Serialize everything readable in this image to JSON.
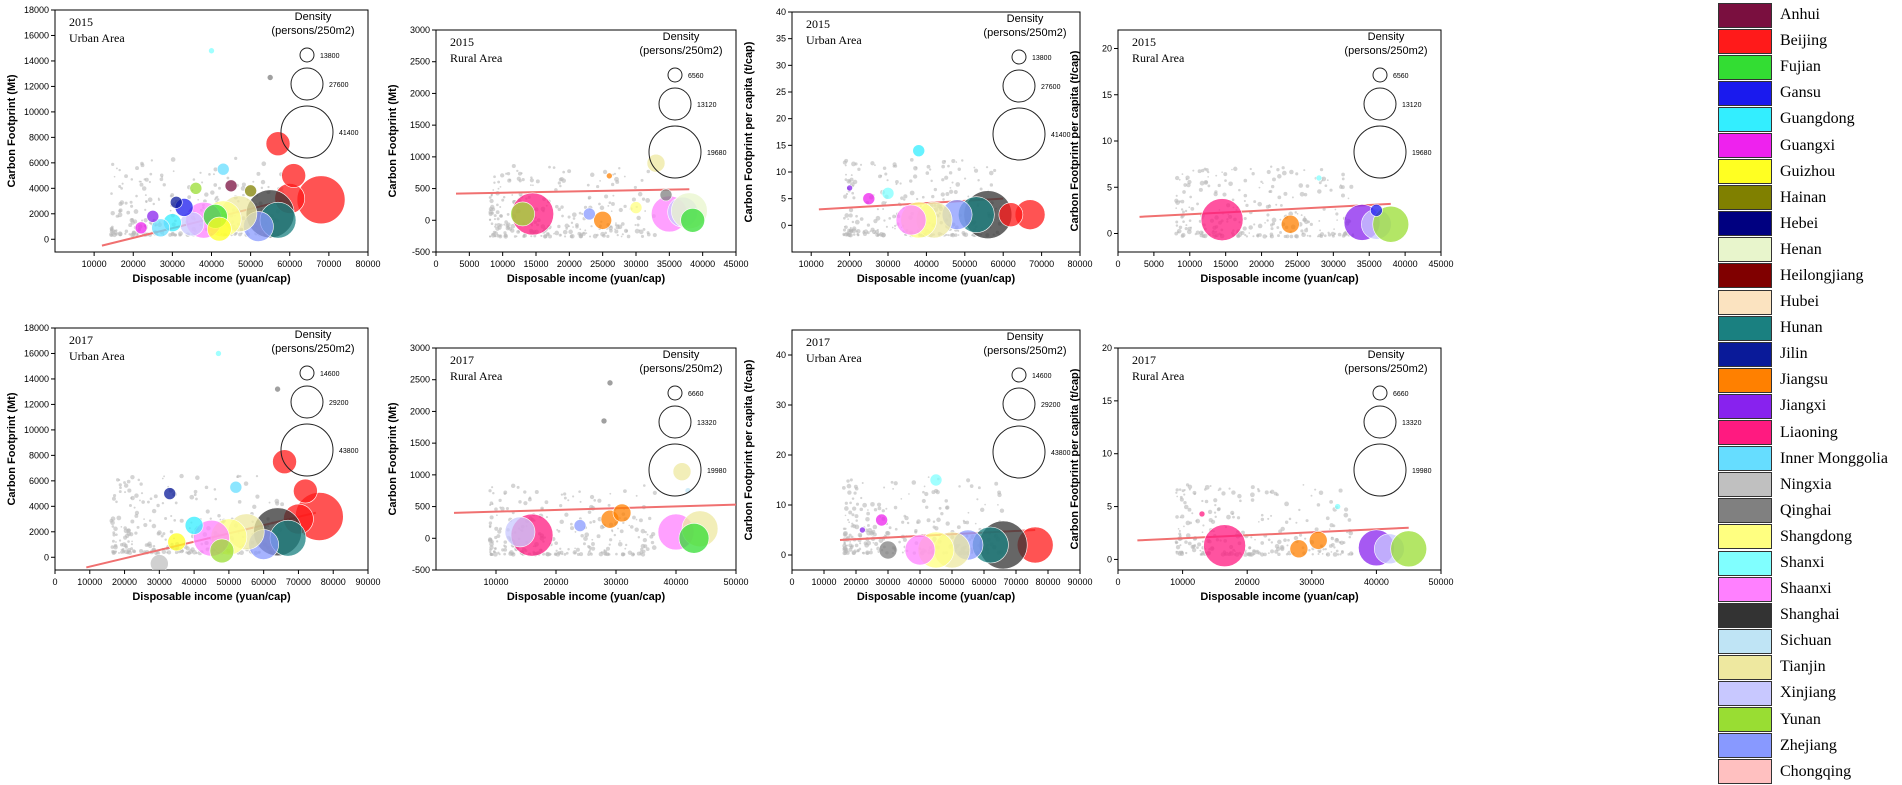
{
  "provinces": [
    {
      "name": "Anhui",
      "color": "#7a0f3f"
    },
    {
      "name": "Beijing",
      "color": "#ff1a1a"
    },
    {
      "name": "Fujian",
      "color": "#33dd33"
    },
    {
      "name": "Gansu",
      "color": "#1a1aee"
    },
    {
      "name": "Guangdong",
      "color": "#33eeff"
    },
    {
      "name": "Guangxi",
      "color": "#ee22ee"
    },
    {
      "name": "Guizhou",
      "color": "#ffff22"
    },
    {
      "name": "Hainan",
      "color": "#808000"
    },
    {
      "name": "Hebei",
      "color": "#000080"
    },
    {
      "name": "Henan",
      "color": "#e8f5cc"
    },
    {
      "name": "Heilongjiang",
      "color": "#800000"
    },
    {
      "name": "Hubei",
      "color": "#fbe3c0"
    },
    {
      "name": "Hunan",
      "color": "#1a8080"
    },
    {
      "name": "Jilin",
      "color": "#0a1a99"
    },
    {
      "name": "Jiangsu",
      "color": "#ff8000"
    },
    {
      "name": "Jiangxi",
      "color": "#8822ee"
    },
    {
      "name": "Liaoning",
      "color": "#ff1a80"
    },
    {
      "name": "Inner Monggolia",
      "color": "#66ddff"
    },
    {
      "name": "Ningxia",
      "color": "#c0c0c0"
    },
    {
      "name": "Qinghai",
      "color": "#808080"
    },
    {
      "name": "Shangdong",
      "color": "#ffff80"
    },
    {
      "name": "Shanxi",
      "color": "#80ffff"
    },
    {
      "name": "Shaanxi",
      "color": "#ff80ff"
    },
    {
      "name": "Shanghai",
      "color": "#333333"
    },
    {
      "name": "Sichuan",
      "color": "#bfe4f5"
    },
    {
      "name": "Tianjin",
      "color": "#eee8a0"
    },
    {
      "name": "Xinjiang",
      "color": "#c8c8ff"
    },
    {
      "name": "Yunan",
      "color": "#99dd33"
    },
    {
      "name": "Zhejiang",
      "color": "#8899ff"
    },
    {
      "name": "Chongqing",
      "color": "#ffc0c0"
    }
  ],
  "chart_data": [
    {
      "type": "scatter",
      "year": "2015",
      "area": "Urban Area",
      "xlabel": "Disposable income (yuan/cap)",
      "ylabel": "Carbon Footprint (Mt)",
      "xlim": [
        0,
        80000
      ],
      "ylim": [
        -1000,
        18000
      ],
      "xticks": [
        10000,
        20000,
        30000,
        40000,
        50000,
        60000,
        70000,
        80000
      ],
      "yticks": [
        0,
        2000,
        4000,
        6000,
        8000,
        10000,
        12000,
        14000,
        16000,
        18000
      ],
      "density_title": "Density",
      "density_unit": "(persons/250m2)",
      "density_sizes": [
        "13800",
        "27600",
        "41400"
      ],
      "trend": [
        [
          12000,
          -500
        ],
        [
          58000,
          3000
        ]
      ],
      "points": [
        {
          "x": 68000,
          "y": 3100,
          "p": 1,
          "s": 8
        },
        {
          "x": 60000,
          "y": 3200,
          "p": 1,
          "s": 5
        },
        {
          "x": 57000,
          "y": 7500,
          "p": 1,
          "s": 4
        },
        {
          "x": 61000,
          "y": 5000,
          "p": 1,
          "s": 4
        },
        {
          "x": 55000,
          "y": 2000,
          "p": 23,
          "s": 8
        },
        {
          "x": 57000,
          "y": 1500,
          "p": 12,
          "s": 6
        },
        {
          "x": 52000,
          "y": 1000,
          "p": 28,
          "s": 5
        },
        {
          "x": 47000,
          "y": 2000,
          "p": 25,
          "s": 6
        },
        {
          "x": 43000,
          "y": 1600,
          "p": 20,
          "s": 6
        },
        {
          "x": 38000,
          "y": 1500,
          "p": 22,
          "s": 6
        },
        {
          "x": 41000,
          "y": 1800,
          "p": 2,
          "s": 4
        },
        {
          "x": 42000,
          "y": 800,
          "p": 6,
          "s": 4
        },
        {
          "x": 35000,
          "y": 1200,
          "p": 26,
          "s": 4
        },
        {
          "x": 33000,
          "y": 2500,
          "p": 3,
          "s": 3
        },
        {
          "x": 30000,
          "y": 1300,
          "p": 4,
          "s": 3
        },
        {
          "x": 27000,
          "y": 900,
          "p": 17,
          "s": 3
        },
        {
          "x": 25000,
          "y": 1800,
          "p": 15,
          "s": 2
        },
        {
          "x": 22000,
          "y": 900,
          "p": 5,
          "s": 2
        },
        {
          "x": 40000,
          "y": 14800,
          "p": 21,
          "s": 1
        },
        {
          "x": 55000,
          "y": 12700,
          "p": 19,
          "s": 1
        },
        {
          "x": 43000,
          "y": 5500,
          "p": 17,
          "s": 2
        },
        {
          "x": 45000,
          "y": 4200,
          "p": 0,
          "s": 2
        },
        {
          "x": 50000,
          "y": 3800,
          "p": 7,
          "s": 2
        },
        {
          "x": 36000,
          "y": 4000,
          "p": 27,
          "s": 2
        },
        {
          "x": 31000,
          "y": 2900,
          "p": 13,
          "s": 2
        }
      ]
    },
    {
      "type": "scatter",
      "year": "2015",
      "area": "Rural Area",
      "xlabel": "Disposable income (yuan/cap)",
      "ylabel": "Carbon Footprint (Mt)",
      "xlim": [
        0,
        45000
      ],
      "ylim": [
        -500,
        3000
      ],
      "xticks": [
        0,
        5000,
        10000,
        15000,
        20000,
        25000,
        30000,
        35000,
        40000,
        45000
      ],
      "yticks": [
        -500,
        0,
        500,
        1000,
        1500,
        2000,
        2500,
        3000
      ],
      "density_title": "Density",
      "density_unit": "(persons/250m2)",
      "density_sizes": [
        "6560",
        "13120",
        "19680"
      ],
      "trend": [
        [
          3000,
          420
        ],
        [
          38000,
          490
        ]
      ],
      "points": [
        {
          "x": 14500,
          "y": 100,
          "p": 16,
          "s": 7
        },
        {
          "x": 13000,
          "y": 100,
          "p": 27,
          "s": 4
        },
        {
          "x": 35000,
          "y": 100,
          "p": 22,
          "s": 6
        },
        {
          "x": 37000,
          "y": 130,
          "p": 26,
          "s": 5
        },
        {
          "x": 38000,
          "y": 150,
          "p": 9,
          "s": 6
        },
        {
          "x": 38500,
          "y": 0,
          "p": 2,
          "s": 4
        },
        {
          "x": 25000,
          "y": 0,
          "p": 14,
          "s": 3
        },
        {
          "x": 26000,
          "y": 700,
          "p": 14,
          "s": 1
        },
        {
          "x": 33000,
          "y": 900,
          "p": 25,
          "s": 3
        },
        {
          "x": 34500,
          "y": 400,
          "p": 19,
          "s": 2
        },
        {
          "x": 23000,
          "y": 100,
          "p": 28,
          "s": 2
        },
        {
          "x": 30000,
          "y": 200,
          "p": 20,
          "s": 2
        }
      ]
    },
    {
      "type": "scatter",
      "year": "2015",
      "area": "Urban Area",
      "xlabel": "Disposable income (yuan/cap)",
      "ylabel": "Carbon Footprint per capita (t/cap)",
      "xlim": [
        5000,
        80000
      ],
      "ylim": [
        -5,
        40
      ],
      "xticks": [
        10000,
        20000,
        30000,
        40000,
        50000,
        60000,
        70000,
        80000
      ],
      "yticks": [
        0,
        5,
        10,
        15,
        20,
        25,
        30,
        35,
        40
      ],
      "density_title": "Density",
      "density_unit": "(persons/250m2)",
      "density_sizes": [
        "13800",
        "27600",
        "41400"
      ],
      "trend": [
        [
          12000,
          3
        ],
        [
          60000,
          5
        ]
      ],
      "points": [
        {
          "x": 67000,
          "y": 2,
          "p": 1,
          "s": 5
        },
        {
          "x": 56000,
          "y": 2,
          "p": 23,
          "s": 8
        },
        {
          "x": 53000,
          "y": 2,
          "p": 12,
          "s": 6
        },
        {
          "x": 48000,
          "y": 2,
          "p": 28,
          "s": 5
        },
        {
          "x": 42000,
          "y": 1,
          "p": 25,
          "s": 6
        },
        {
          "x": 38000,
          "y": 1,
          "p": 20,
          "s": 6
        },
        {
          "x": 36000,
          "y": 1,
          "p": 22,
          "s": 5
        },
        {
          "x": 38000,
          "y": 14,
          "p": 4,
          "s": 2
        },
        {
          "x": 30000,
          "y": 6,
          "p": 21,
          "s": 2
        },
        {
          "x": 25000,
          "y": 5,
          "p": 5,
          "s": 2
        },
        {
          "x": 20000,
          "y": 7,
          "p": 15,
          "s": 1
        },
        {
          "x": 62000,
          "y": 2,
          "p": 1,
          "s": 4
        }
      ]
    },
    {
      "type": "scatter",
      "year": "2015",
      "area": "Rural Area",
      "xlabel": "Disposable income (yuan/cap)",
      "ylabel": "Carbon Footprint per capita (t/cap)",
      "xlim": [
        0,
        45000
      ],
      "ylim": [
        -2,
        22
      ],
      "xticks": [
        0,
        5000,
        10000,
        15000,
        20000,
        25000,
        30000,
        35000,
        40000,
        45000
      ],
      "yticks": [
        0,
        5,
        10,
        15,
        20
      ],
      "density_title": "Density",
      "density_unit": "(persons/250m2)",
      "density_sizes": [
        "6560",
        "13120",
        "19680"
      ],
      "trend": [
        [
          3000,
          1.8
        ],
        [
          38000,
          3.2
        ]
      ],
      "points": [
        {
          "x": 14500,
          "y": 1.5,
          "p": 16,
          "s": 7
        },
        {
          "x": 34000,
          "y": 1.2,
          "p": 15,
          "s": 6
        },
        {
          "x": 36000,
          "y": 1.0,
          "p": 26,
          "s": 5
        },
        {
          "x": 38000,
          "y": 1.0,
          "p": 27,
          "s": 6
        },
        {
          "x": 24000,
          "y": 1.0,
          "p": 14,
          "s": 3
        },
        {
          "x": 28000,
          "y": 6.0,
          "p": 21,
          "s": 1
        },
        {
          "x": 36000,
          "y": 2.5,
          "p": 3,
          "s": 2
        }
      ]
    },
    {
      "type": "scatter",
      "year": "2017",
      "area": "Urban Area",
      "xlabel": "Disposable income (yuan/cap)",
      "ylabel": "Carbon Footprint (Mt)",
      "xlim": [
        0,
        90000
      ],
      "ylim": [
        -1000,
        18000
      ],
      "xticks": [
        0,
        10000,
        20000,
        30000,
        40000,
        50000,
        60000,
        70000,
        80000,
        90000
      ],
      "yticks": [
        0,
        2000,
        4000,
        6000,
        8000,
        10000,
        12000,
        14000,
        16000,
        18000
      ],
      "density_title": "Density",
      "density_unit": "(persons/250m2)",
      "density_sizes": [
        "14600",
        "29200",
        "43800"
      ],
      "trend": [
        [
          9000,
          -800
        ],
        [
          75000,
          3500
        ]
      ],
      "points": [
        {
          "x": 76000,
          "y": 3200,
          "p": 1,
          "s": 8
        },
        {
          "x": 70000,
          "y": 3000,
          "p": 1,
          "s": 5
        },
        {
          "x": 66000,
          "y": 7500,
          "p": 1,
          "s": 4
        },
        {
          "x": 72000,
          "y": 5200,
          "p": 1,
          "s": 4
        },
        {
          "x": 64000,
          "y": 2000,
          "p": 23,
          "s": 8
        },
        {
          "x": 67000,
          "y": 1500,
          "p": 12,
          "s": 6
        },
        {
          "x": 60000,
          "y": 1000,
          "p": 28,
          "s": 5
        },
        {
          "x": 55000,
          "y": 2000,
          "p": 25,
          "s": 6
        },
        {
          "x": 50000,
          "y": 1600,
          "p": 20,
          "s": 6
        },
        {
          "x": 45000,
          "y": 1500,
          "p": 22,
          "s": 6
        },
        {
          "x": 48000,
          "y": 500,
          "p": 27,
          "s": 4
        },
        {
          "x": 30000,
          "y": -500,
          "p": 18,
          "s": 3
        },
        {
          "x": 33000,
          "y": 5000,
          "p": 13,
          "s": 2
        },
        {
          "x": 47000,
          "y": 16000,
          "p": 21,
          "s": 1
        },
        {
          "x": 64000,
          "y": 13200,
          "p": 19,
          "s": 1
        },
        {
          "x": 40000,
          "y": 2500,
          "p": 4,
          "s": 3
        },
        {
          "x": 35000,
          "y": 1200,
          "p": 6,
          "s": 3
        },
        {
          "x": 52000,
          "y": 5500,
          "p": 17,
          "s": 2
        }
      ]
    },
    {
      "type": "scatter",
      "year": "2017",
      "area": "Rural Area",
      "xlabel": "Disposable income (yuan/cap)",
      "ylabel": "Carbon Footprint (Mt)",
      "xlim": [
        0,
        50000
      ],
      "ylim": [
        -500,
        3000
      ],
      "xticks": [
        10000,
        20000,
        30000,
        40000,
        50000
      ],
      "yticks": [
        -500,
        0,
        500,
        1000,
        1500,
        2000,
        2500,
        3000
      ],
      "density_title": "Density",
      "density_unit": "(persons/250m2)",
      "density_sizes": [
        "6660",
        "13320",
        "19980"
      ],
      "trend": [
        [
          3000,
          400
        ],
        [
          50000,
          530
        ]
      ],
      "points": [
        {
          "x": 16000,
          "y": 50,
          "p": 16,
          "s": 7
        },
        {
          "x": 14000,
          "y": 100,
          "p": 26,
          "s": 5
        },
        {
          "x": 40000,
          "y": 100,
          "p": 22,
          "s": 6
        },
        {
          "x": 44000,
          "y": 150,
          "p": 25,
          "s": 6
        },
        {
          "x": 43000,
          "y": 0,
          "p": 2,
          "s": 5
        },
        {
          "x": 29000,
          "y": 300,
          "p": 14,
          "s": 3
        },
        {
          "x": 31000,
          "y": 400,
          "p": 14,
          "s": 3
        },
        {
          "x": 41000,
          "y": 1050,
          "p": 25,
          "s": 3
        },
        {
          "x": 42000,
          "y": 750,
          "p": 24,
          "s": 1
        },
        {
          "x": 29000,
          "y": 2450,
          "p": 19,
          "s": 1
        },
        {
          "x": 28000,
          "y": 1850,
          "p": 19,
          "s": 1
        },
        {
          "x": 24000,
          "y": 200,
          "p": 28,
          "s": 2
        }
      ]
    },
    {
      "type": "scatter",
      "year": "2017",
      "area": "Urban Area",
      "xlabel": "Disposable income (yuan/cap)",
      "ylabel": "Carbon Footprint per capita (t/cap)",
      "xlim": [
        0,
        90000
      ],
      "ylim": [
        -3,
        45
      ],
      "xticks": [
        0,
        10000,
        20000,
        30000,
        40000,
        50000,
        60000,
        70000,
        80000,
        90000
      ],
      "yticks": [
        0,
        10,
        20,
        30,
        40
      ],
      "density_title": "Density",
      "density_unit": "(persons/250m2)",
      "density_sizes": [
        "14600",
        "29200",
        "43800"
      ],
      "trend": [
        [
          15000,
          3
        ],
        [
          76000,
          5
        ]
      ],
      "points": [
        {
          "x": 76000,
          "y": 2,
          "p": 1,
          "s": 6
        },
        {
          "x": 66000,
          "y": 2,
          "p": 23,
          "s": 8
        },
        {
          "x": 62000,
          "y": 2,
          "p": 12,
          "s": 6
        },
        {
          "x": 55000,
          "y": 2,
          "p": 28,
          "s": 5
        },
        {
          "x": 50000,
          "y": 1,
          "p": 25,
          "s": 6
        },
        {
          "x": 45000,
          "y": 1,
          "p": 20,
          "s": 6
        },
        {
          "x": 40000,
          "y": 1,
          "p": 22,
          "s": 5
        },
        {
          "x": 45000,
          "y": 15,
          "p": 21,
          "s": 2
        },
        {
          "x": 30000,
          "y": 1,
          "p": 19,
          "s": 3
        },
        {
          "x": 28000,
          "y": 7,
          "p": 5,
          "s": 2
        },
        {
          "x": 22000,
          "y": 5,
          "p": 15,
          "s": 1
        }
      ]
    },
    {
      "type": "scatter",
      "year": "2017",
      "area": "Rural Area",
      "xlabel": "Disposable income (yuan/cap)",
      "ylabel": "Carbon Footprint per capita (t/cap)",
      "xlim": [
        0,
        50000
      ],
      "ylim": [
        -1,
        20
      ],
      "xticks": [
        0,
        10000,
        20000,
        30000,
        40000,
        50000
      ],
      "yticks": [
        0,
        5,
        10,
        15,
        20
      ],
      "density_title": "Density",
      "density_unit": "(persons/250m2)",
      "density_sizes": [
        "6660",
        "13320",
        "19980"
      ],
      "trend": [
        [
          3000,
          1.8
        ],
        [
          45000,
          3.0
        ]
      ],
      "points": [
        {
          "x": 16500,
          "y": 1.3,
          "p": 16,
          "s": 7
        },
        {
          "x": 40000,
          "y": 1.1,
          "p": 15,
          "s": 6
        },
        {
          "x": 42000,
          "y": 1.0,
          "p": 26,
          "s": 5
        },
        {
          "x": 45000,
          "y": 1.0,
          "p": 27,
          "s": 6
        },
        {
          "x": 28000,
          "y": 1.0,
          "p": 14,
          "s": 3
        },
        {
          "x": 31000,
          "y": 1.8,
          "p": 14,
          "s": 3
        },
        {
          "x": 13000,
          "y": 4.3,
          "p": 16,
          "s": 1
        },
        {
          "x": 34000,
          "y": 5.0,
          "p": 21,
          "s": 1
        }
      ]
    }
  ]
}
